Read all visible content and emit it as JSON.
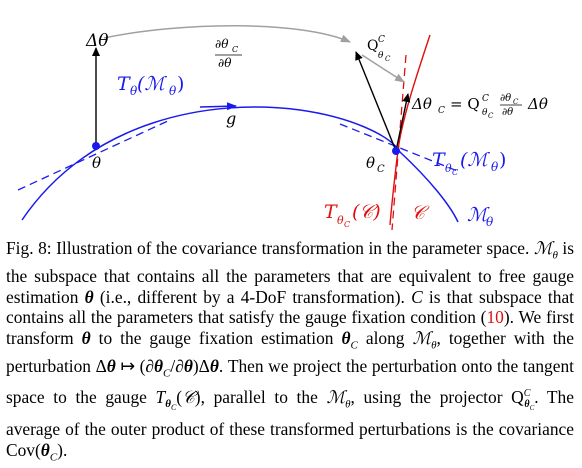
{
  "figure": {
    "labels": {
      "delta_theta": "Δθ",
      "derivative_num": "∂θ",
      "derivative_num_sub": "C",
      "derivative_den": "∂θ",
      "tangent_theta": "T",
      "tangent_theta_sub": "θ",
      "tangent_theta_arg": "(ℳ",
      "tangent_theta_arg_sub": "θ",
      "tangent_theta_close": ")",
      "g_label": "g",
      "theta_point": "θ",
      "projector_Q": "Q",
      "projector_sup": "C",
      "projector_sub": "θ",
      "projector_subsub": "C",
      "delta_theta_c_eq": "Δθ",
      "delta_theta_c_eq_rhs": "= Q",
      "delta_theta_c_tail": "Δθ",
      "theta_c_point": "θ",
      "theta_c_sub": "C",
      "tangent_thetac": "T",
      "tangent_thetac_arg": "(ℳ",
      "tangent_c_gauge": "T",
      "tangent_c_gauge_arg": "(𝒞)",
      "calC": "𝒞",
      "calM": "ℳ",
      "calM_sub": "θ"
    },
    "colors": {
      "blue": "#1a1aee",
      "red": "#e01010",
      "grey": "#a0a0a0",
      "black": "#000000"
    }
  },
  "caption": {
    "prefix": "Fig. 8: Illustration of the covariance transformation in the parameter space.",
    "p1": "is the subspace that contains all the parameters that are equivalent to free gauge estimation",
    "p2": "(i.e., different by a 4-DoF transformation).",
    "p3": "is that subspace that contains all the parameters that satisfy the gauge fixation condition (",
    "ref": "10",
    "p4": "). We first transform",
    "p5": "to the gauge fixation estimation",
    "p6": "along",
    "p7": ", together with the perturbation",
    "p8": ". Then we project the perturbation onto the tangent space to the gauge",
    "p9": ", parallel to the",
    "p10": ", using the projector",
    "p11": ". The average of the outer product of these transformed perturbations is the covariance"
  }
}
